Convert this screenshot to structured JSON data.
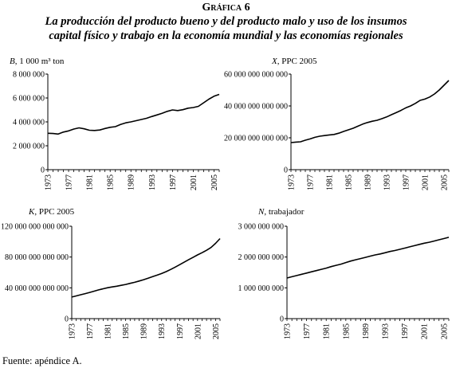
{
  "figure": {
    "label": "Gráfica 6",
    "title_line1": "La producción del producto bueno y del producto malo y uso de los insumos",
    "title_line2": "capital físico y trabajo en la economía mundial y las economías regionales"
  },
  "source": "Fuente: apéndice A.",
  "chart_data": [
    {
      "type": "line",
      "label_var": "B",
      "label_unit": ", 1 000 m³ ton",
      "y_ticks": [
        "0",
        "2 000 000",
        "4 000 000",
        "6 000 000",
        "8 000 000"
      ],
      "ylim": [
        0,
        8000000
      ],
      "x_tick_labels": [
        "1973",
        "1977",
        "1981",
        "1985",
        "1989",
        "1993",
        "1997",
        "2001",
        "2005"
      ],
      "xlim": [
        1973,
        2006
      ],
      "x": [
        1973,
        1974,
        1975,
        1976,
        1977,
        1978,
        1979,
        1980,
        1981,
        1982,
        1983,
        1984,
        1985,
        1986,
        1987,
        1988,
        1989,
        1990,
        1991,
        1992,
        1993,
        1994,
        1995,
        1996,
        1997,
        1998,
        1999,
        2000,
        2001,
        2002,
        2003,
        2004,
        2005,
        2006
      ],
      "values": [
        3050000,
        3030000,
        2980000,
        3150000,
        3250000,
        3400000,
        3500000,
        3420000,
        3300000,
        3280000,
        3320000,
        3450000,
        3550000,
        3600000,
        3780000,
        3920000,
        4000000,
        4100000,
        4200000,
        4300000,
        4450000,
        4580000,
        4720000,
        4880000,
        5000000,
        4950000,
        5020000,
        5150000,
        5200000,
        5300000,
        5600000,
        5900000,
        6150000,
        6300000
      ]
    },
    {
      "type": "line",
      "label_var": "X",
      "label_unit": ", PPC 2005",
      "y_ticks": [
        "0",
        "20 000 000 000 000",
        "40 000 000 000 000",
        "60 000 000 000 000"
      ],
      "ylim": [
        0,
        60000000000000
      ],
      "x_tick_labels": [
        "1973",
        "1977",
        "1981",
        "1985",
        "1989",
        "1993",
        "1997",
        "2001",
        "2005"
      ],
      "xlim": [
        1973,
        2006
      ],
      "x": [
        1973,
        1974,
        1975,
        1976,
        1977,
        1978,
        1979,
        1980,
        1981,
        1982,
        1983,
        1984,
        1985,
        1986,
        1987,
        1988,
        1989,
        1990,
        1991,
        1992,
        1993,
        1994,
        1995,
        1996,
        1997,
        1998,
        1999,
        2000,
        2001,
        2002,
        2003,
        2004,
        2005,
        2006
      ],
      "values": [
        17000000000000,
        17300000000000,
        17500000000000,
        18500000000000,
        19300000000000,
        20300000000000,
        21000000000000,
        21400000000000,
        21800000000000,
        22100000000000,
        22900000000000,
        24000000000000,
        25000000000000,
        26000000000000,
        27300000000000,
        28600000000000,
        29600000000000,
        30400000000000,
        31000000000000,
        32000000000000,
        33100000000000,
        34500000000000,
        35800000000000,
        37200000000000,
        38800000000000,
        40000000000000,
        41600000000000,
        43500000000000,
        44300000000000,
        45600000000000,
        47500000000000,
        50000000000000,
        53000000000000,
        56000000000000
      ]
    },
    {
      "type": "line",
      "label_var": "K",
      "label_unit": ", PPC 2005",
      "y_ticks": [
        "0",
        "40 000 000 000 000",
        "80 000 000 000 000",
        "120 000 000 000 000"
      ],
      "ylim": [
        0,
        120000000000000
      ],
      "x_tick_labels": [
        "1973",
        "1977",
        "1981",
        "1985",
        "1989",
        "1993",
        "1997",
        "2001",
        "2005"
      ],
      "xlim": [
        1973,
        2006
      ],
      "x": [
        1973,
        1974,
        1975,
        1976,
        1977,
        1978,
        1979,
        1980,
        1981,
        1982,
        1983,
        1984,
        1985,
        1986,
        1987,
        1988,
        1989,
        1990,
        1991,
        1992,
        1993,
        1994,
        1995,
        1996,
        1997,
        1998,
        1999,
        2000,
        2001,
        2002,
        2003,
        2004,
        2005,
        2006
      ],
      "values": [
        28000000000000,
        29500000000000,
        31000000000000,
        32500000000000,
        34000000000000,
        35700000000000,
        37300000000000,
        38800000000000,
        40100000000000,
        41200000000000,
        42100000000000,
        43200000000000,
        44400000000000,
        45800000000000,
        47200000000000,
        48800000000000,
        50600000000000,
        52600000000000,
        54600000000000,
        56500000000000,
        58500000000000,
        61000000000000,
        63800000000000,
        66800000000000,
        70000000000000,
        73200000000000,
        76400000000000,
        79600000000000,
        82800000000000,
        85700000000000,
        88800000000000,
        92400000000000,
        97800000000000,
        104000000000000
      ]
    },
    {
      "type": "line",
      "label_var": "N",
      "label_unit": ", trabajador",
      "y_ticks": [
        "0",
        "1 000 000 000",
        "2 000 000 000",
        "3 000 000 000"
      ],
      "ylim": [
        0,
        3000000000
      ],
      "x_tick_labels": [
        "1973",
        "1977",
        "1981",
        "1985",
        "1989",
        "1993",
        "1997",
        "2001",
        "2005"
      ],
      "xlim": [
        1973,
        2006
      ],
      "x": [
        1973,
        1974,
        1975,
        1976,
        1977,
        1978,
        1979,
        1980,
        1981,
        1982,
        1983,
        1984,
        1985,
        1986,
        1987,
        1988,
        1989,
        1990,
        1991,
        1992,
        1993,
        1994,
        1995,
        1996,
        1997,
        1998,
        1999,
        2000,
        2001,
        2002,
        2003,
        2004,
        2005,
        2006
      ],
      "values": [
        1320000000,
        1360000000,
        1400000000,
        1440000000,
        1480000000,
        1520000000,
        1560000000,
        1600000000,
        1640000000,
        1690000000,
        1730000000,
        1770000000,
        1820000000,
        1870000000,
        1910000000,
        1950000000,
        1990000000,
        2030000000,
        2070000000,
        2100000000,
        2140000000,
        2180000000,
        2210000000,
        2250000000,
        2290000000,
        2330000000,
        2370000000,
        2410000000,
        2450000000,
        2480000000,
        2520000000,
        2560000000,
        2600000000,
        2640000000
      ]
    }
  ]
}
